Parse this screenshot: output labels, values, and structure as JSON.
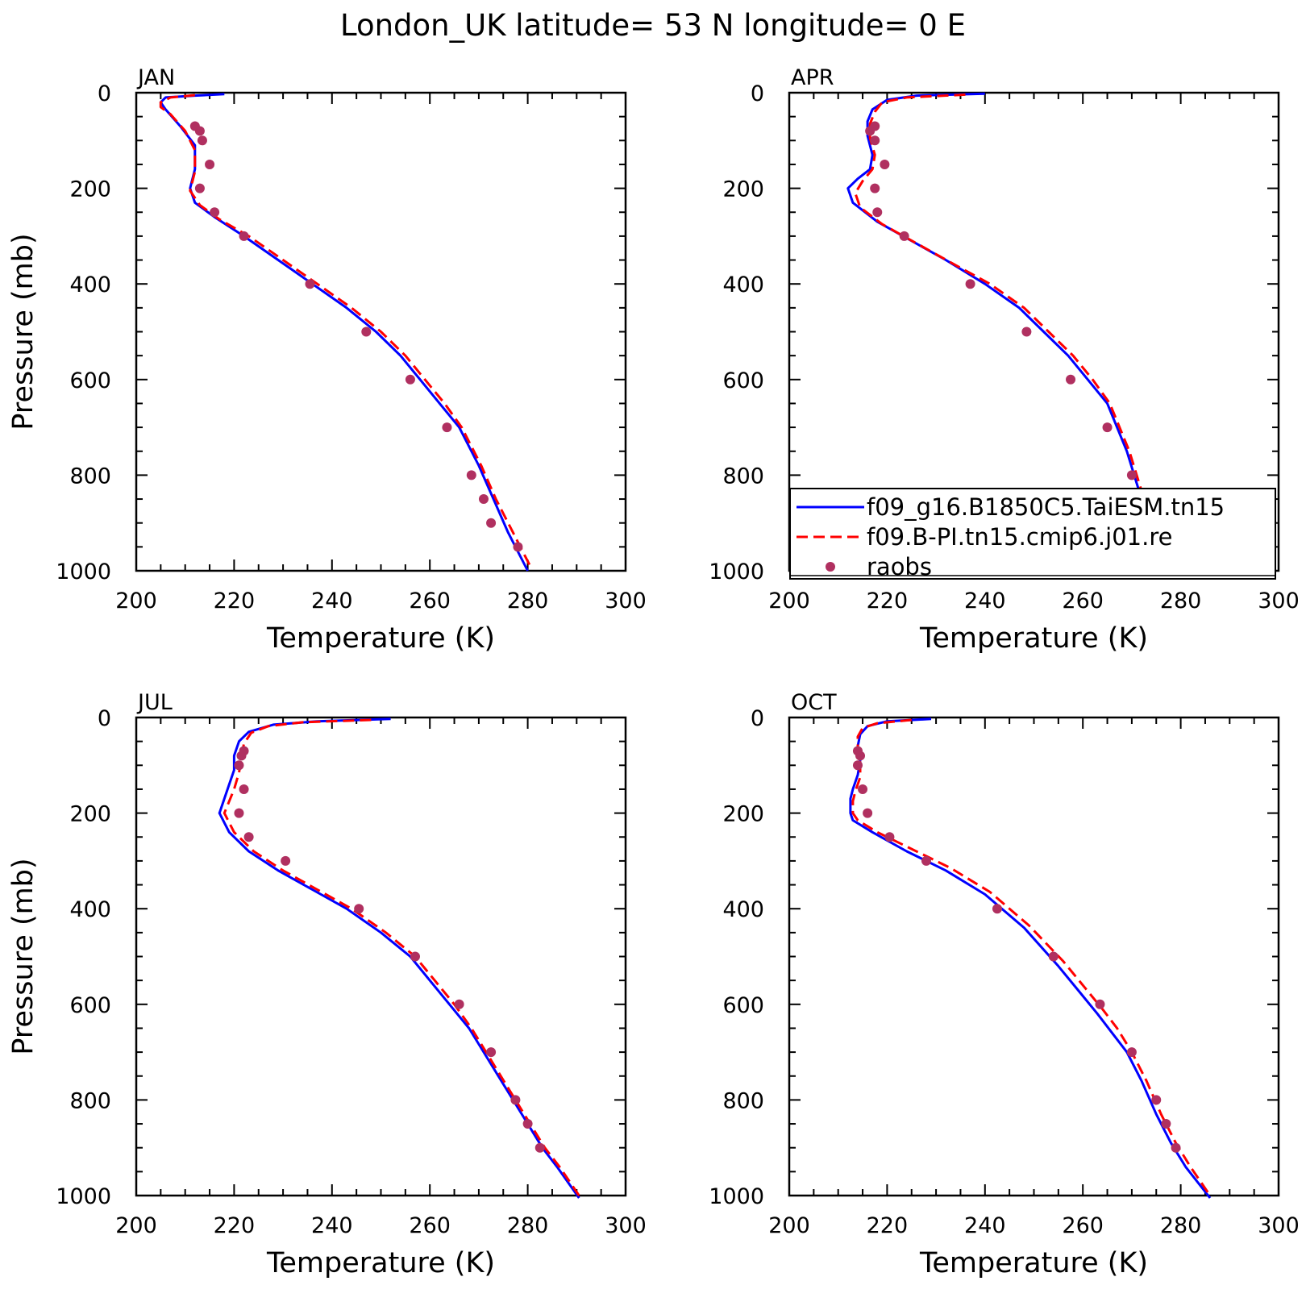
{
  "title": "London_UK  latitude= 53 N longitude= 0 E",
  "colors": {
    "model1": "#0000ff",
    "model2": "#ff0000",
    "obs": "#b03060",
    "axis": "#000000"
  },
  "legend": {
    "items": [
      {
        "label": "f09_g16.B1850C5.TaiESM.tn15",
        "style": "solid-line",
        "color": "#0000ff"
      },
      {
        "label": "f09.B-PI.tn15.cmip6.j01.re",
        "style": "dashed-line",
        "color": "#ff0000"
      },
      {
        "label": "raobs",
        "style": "dot",
        "color": "#b03060"
      }
    ],
    "panel": "APR",
    "placement": "lower-right"
  },
  "chart_data": [
    {
      "type": "line",
      "panel": "JAN",
      "title": "JAN",
      "xlabel": "Temperature (K)",
      "ylabel": "Pressure (mb)",
      "xlim": [
        200,
        300
      ],
      "ylim": [
        1000,
        0
      ],
      "xticks": [
        "200",
        "220",
        "240",
        "260",
        "280",
        "300"
      ],
      "yticks": [
        "0",
        "200",
        "400",
        "600",
        "800",
        "1000"
      ],
      "series": [
        {
          "name": "f09_g16.B1850C5.TaiESM.tn15",
          "style": "solid",
          "x": [
            218,
            212,
            206,
            205,
            206,
            209,
            212,
            212,
            211,
            212,
            216,
            222,
            229,
            236,
            243,
            249,
            254,
            258,
            262,
            266,
            270,
            273,
            276,
            280
          ],
          "y": [
            3,
            6,
            10,
            20,
            35,
            70,
            110,
            160,
            200,
            230,
            260,
            300,
            350,
            400,
            450,
            500,
            550,
            600,
            650,
            700,
            780,
            850,
            920,
            1000
          ]
        },
        {
          "name": "f09.B-PI.tn15.cmip6.j01.re",
          "style": "dashed",
          "x": [
            212,
            207,
            205,
            205,
            207,
            210,
            212,
            212,
            211,
            213,
            217,
            223,
            230,
            237,
            244,
            250,
            255,
            259,
            263,
            266.5,
            270.5,
            273.5,
            277,
            280.5
          ],
          "y": [
            5,
            10,
            20,
            30,
            45,
            80,
            120,
            165,
            205,
            235,
            265,
            300,
            350,
            400,
            450,
            500,
            550,
            600,
            650,
            700,
            780,
            850,
            920,
            990
          ]
        },
        {
          "name": "raobs",
          "style": "dots",
          "x": [
            212,
            213,
            213.5,
            215,
            213,
            216,
            222,
            235.5,
            247,
            256,
            263.5,
            268.5,
            271,
            272.5,
            278
          ],
          "y": [
            70,
            80,
            100,
            150,
            200,
            250,
            300,
            400,
            500,
            600,
            700,
            800,
            850,
            900,
            950
          ]
        }
      ]
    },
    {
      "type": "line",
      "panel": "APR",
      "title": "APR",
      "xlabel": "Temperature (K)",
      "ylabel": "",
      "xlim": [
        200,
        300
      ],
      "ylim": [
        1000,
        0
      ],
      "xticks": [
        "200",
        "220",
        "240",
        "260",
        "280",
        "300"
      ],
      "yticks": [
        "0",
        "200",
        "400",
        "600",
        "800",
        "1000"
      ],
      "series": [
        {
          "name": "f09_g16.B1850C5.TaiESM.tn15",
          "style": "solid",
          "x": [
            240,
            226,
            220,
            217,
            216,
            216,
            217,
            216.5,
            214,
            212,
            213,
            218,
            225,
            232,
            240,
            247,
            252,
            257,
            261,
            265,
            269,
            272,
            276,
            283
          ],
          "y": [
            2,
            6,
            15,
            35,
            60,
            90,
            130,
            160,
            180,
            200,
            230,
            270,
            310,
            350,
            400,
            450,
            500,
            550,
            600,
            650,
            750,
            850,
            920,
            1005
          ]
        },
        {
          "name": "f09.B-PI.tn15.cmip6.j01.re",
          "style": "dashed",
          "x": [
            236,
            224,
            219,
            217.5,
            216.5,
            216.5,
            217.5,
            217,
            215,
            213.5,
            214.5,
            219,
            226,
            233,
            241,
            248,
            253,
            258,
            262,
            265.5,
            269.5,
            272.5,
            276.5,
            283
          ],
          "y": [
            4,
            10,
            20,
            40,
            65,
            95,
            130,
            160,
            185,
            210,
            240,
            275,
            315,
            355,
            400,
            450,
            500,
            550,
            600,
            650,
            750,
            850,
            920,
            1000
          ]
        },
        {
          "name": "raobs",
          "style": "dots",
          "x": [
            217.5,
            216.5,
            217.5,
            219.5,
            217.5,
            218,
            223.5,
            237,
            248.5,
            257.5,
            265,
            270,
            272.5,
            275,
            276
          ],
          "y": [
            70,
            80,
            100,
            150,
            200,
            250,
            300,
            400,
            500,
            600,
            700,
            800,
            850,
            900,
            950
          ]
        }
      ]
    },
    {
      "type": "line",
      "panel": "JUL",
      "title": "JUL",
      "xlabel": "Temperature (K)",
      "ylabel": "Pressure (mb)",
      "xlim": [
        200,
        300
      ],
      "ylim": [
        1000,
        0
      ],
      "xticks": [
        "200",
        "220",
        "240",
        "260",
        "280",
        "300"
      ],
      "yticks": [
        "0",
        "200",
        "400",
        "600",
        "800",
        "1000"
      ],
      "series": [
        {
          "name": "f09_g16.B1850C5.TaiESM.tn15",
          "style": "solid",
          "x": [
            252,
            237,
            228,
            223,
            221,
            220,
            220,
            219,
            217,
            219,
            223,
            229,
            236,
            243,
            250,
            256,
            260,
            264,
            268,
            271,
            274,
            277,
            280,
            283,
            286,
            290.5
          ],
          "y": [
            3,
            8,
            15,
            30,
            50,
            80,
            110,
            140,
            200,
            240,
            280,
            320,
            360,
            400,
            450,
            500,
            550,
            600,
            650,
            700,
            750,
            800,
            850,
            900,
            940,
            1005
          ]
        },
        {
          "name": "f09.B-PI.tn15.cmip6.j01.re",
          "style": "dashed",
          "x": [
            248,
            234,
            227,
            223.5,
            222,
            221.5,
            221,
            220,
            218,
            220,
            224,
            230,
            237,
            244,
            251,
            257,
            261,
            265,
            268.5,
            271.5,
            274.5,
            277.5,
            280.5,
            283.5,
            286.5,
            290.5
          ],
          "y": [
            5,
            10,
            18,
            32,
            55,
            85,
            115,
            150,
            200,
            240,
            280,
            320,
            360,
            400,
            450,
            500,
            550,
            600,
            650,
            700,
            750,
            800,
            850,
            900,
            940,
            1000
          ]
        },
        {
          "name": "raobs",
          "style": "dots",
          "x": [
            222,
            221.5,
            221,
            222,
            221,
            223,
            230.5,
            245.5,
            257,
            266,
            272.5,
            277.5,
            280,
            282.5
          ],
          "y": [
            70,
            80,
            100,
            150,
            200,
            250,
            300,
            400,
            500,
            600,
            700,
            800,
            850,
            900
          ]
        }
      ]
    },
    {
      "type": "line",
      "panel": "OCT",
      "title": "OCT",
      "xlabel": "Temperature (K)",
      "ylabel": "",
      "xlim": [
        200,
        300
      ],
      "ylim": [
        1000,
        0
      ],
      "xticks": [
        "200",
        "220",
        "240",
        "260",
        "280",
        "300"
      ],
      "yticks": [
        "0",
        "200",
        "400",
        "600",
        "800",
        "1000"
      ],
      "series": [
        {
          "name": "f09_g16.B1850C5.TaiESM.tn15",
          "style": "solid",
          "x": [
            229,
            220,
            216,
            214.5,
            214,
            214.5,
            214,
            213,
            212.5,
            212.5,
            213,
            217,
            224,
            232,
            240,
            248,
            255,
            259,
            263,
            266,
            269,
            272,
            275,
            278,
            281,
            286
          ],
          "y": [
            3,
            8,
            18,
            35,
            60,
            90,
            120,
            150,
            170,
            200,
            215,
            240,
            280,
            320,
            370,
            440,
            520,
            570,
            620,
            660,
            700,
            760,
            830,
            890,
            940,
            1005
          ]
        },
        {
          "name": "f09.B-PI.tn15.cmip6.j01.re",
          "style": "dashed",
          "x": [
            225,
            218,
            215,
            214,
            214,
            214.5,
            214.5,
            213.5,
            213,
            213,
            214,
            218,
            225,
            233,
            241,
            249,
            256,
            260,
            264,
            267,
            270,
            273,
            276,
            279,
            282,
            286
          ],
          "y": [
            5,
            12,
            22,
            40,
            65,
            95,
            125,
            155,
            175,
            200,
            215,
            240,
            275,
            315,
            365,
            435,
            510,
            560,
            610,
            650,
            700,
            760,
            830,
            890,
            940,
            1000
          ]
        },
        {
          "name": "raobs",
          "style": "dots",
          "x": [
            214,
            214.5,
            214,
            215,
            216,
            220.5,
            228,
            242.5,
            254,
            263.5,
            270,
            275,
            277,
            279
          ],
          "y": [
            70,
            80,
            100,
            150,
            200,
            250,
            300,
            400,
            500,
            600,
            700,
            800,
            850,
            900
          ]
        }
      ]
    }
  ]
}
